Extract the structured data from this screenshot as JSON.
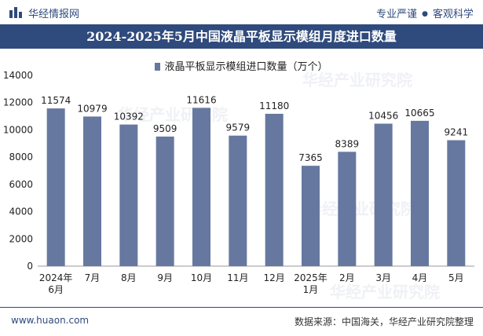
{
  "header": {
    "logo_text": "华经情报网",
    "tagline_left": "专业严谨",
    "tagline_right": "客观科学"
  },
  "watermark": "华经产业研究院",
  "colors": {
    "bar": "#66789f",
    "brand": "#2f4a7c"
  },
  "chart_data": {
    "type": "bar",
    "title": "2024-2025年5月中国液晶平板显示模组月度进口数量",
    "legend": "液晶平板显示模组进口数量（万个）",
    "categories": [
      [
        "2024年",
        "6月"
      ],
      [
        "7月"
      ],
      [
        "8月"
      ],
      [
        "9月"
      ],
      [
        "10月"
      ],
      [
        "11月"
      ],
      [
        "12月"
      ],
      [
        "2025年",
        "1月"
      ],
      [
        "2月"
      ],
      [
        "3月"
      ],
      [
        "4月"
      ],
      [
        "5月"
      ]
    ],
    "values": [
      11574,
      10979,
      10392,
      9509,
      11616,
      9579,
      11180,
      7365,
      8389,
      10456,
      10665,
      9241
    ],
    "yticks": [
      0,
      2000,
      4000,
      6000,
      8000,
      10000,
      12000,
      14000
    ],
    "ylim": [
      0,
      14000
    ],
    "xlabel": "",
    "ylabel": ""
  },
  "footer": {
    "website": "www.huaon.com",
    "source": "数据来源：中国海关，华经产业研究院整理"
  }
}
